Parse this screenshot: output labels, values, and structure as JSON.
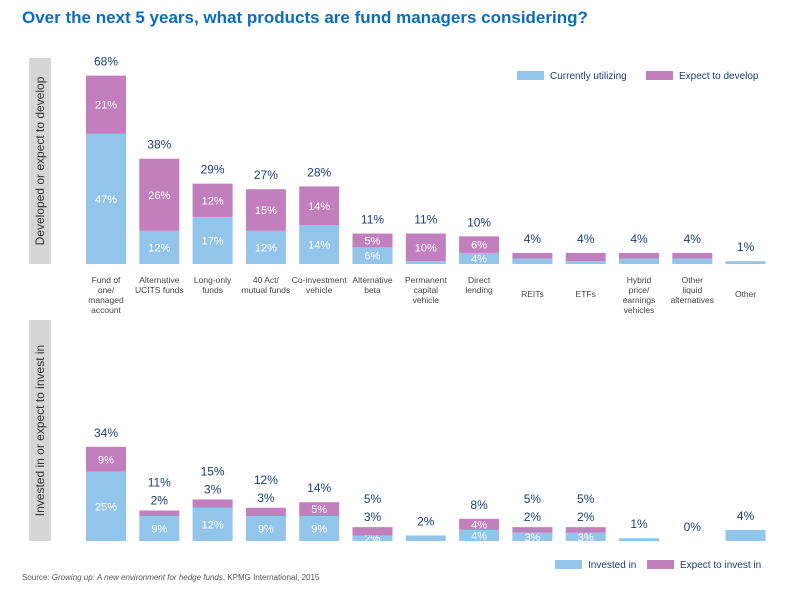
{
  "title": "Over the next 5 years, what products are fund managers considering?",
  "source": {
    "prefix": "Source: ",
    "work": "Growing up: A new environment for hedge funds",
    "suffix": ", KPMG International, 2015"
  },
  "colors": {
    "blue": "#92c5e9",
    "purple": "#c27fbe"
  },
  "chart_data": [
    {
      "type": "bar",
      "stacked": true,
      "ylabel": "Developed or expect to develop",
      "categories": [
        "Fund of one/ managed account",
        "Alternative UCITS funds",
        "Long-only funds",
        "40 Act/ mutual funds",
        "Co-investment vehicle",
        "Alternative beta",
        "Permanent capital vehicle",
        "Direct lending",
        "REITs",
        "ETFs",
        "Hybrid price/ earnings vehicles",
        "Other liquid alternatives",
        "Other"
      ],
      "category_lines": [
        [
          "Fund of",
          "one/",
          "managed",
          "account"
        ],
        [
          "Alternative",
          "UCITS funds"
        ],
        [
          "Long-only",
          "funds"
        ],
        [
          "40 Act/",
          "mutual funds"
        ],
        [
          "Co-investment",
          "vehicle"
        ],
        [
          "Alternative",
          "beta"
        ],
        [
          "Permanent",
          "capital",
          "vehicle"
        ],
        [
          "Direct",
          "lending"
        ],
        [
          "REITs"
        ],
        [
          "ETFs"
        ],
        [
          "Hybrid",
          "price/",
          "earnings",
          "vehicles"
        ],
        [
          "Other",
          "liquid",
          "alternatives"
        ],
        [
          "Other"
        ]
      ],
      "series": [
        {
          "name": "Currently utilizing",
          "values": [
            47,
            12,
            17,
            12,
            14,
            6,
            1,
            4,
            2,
            1,
            2,
            2,
            1
          ]
        },
        {
          "name": "Expect to develop",
          "values": [
            21,
            26,
            12,
            15,
            14,
            5,
            10,
            6,
            2,
            3,
            2,
            2,
            0
          ]
        }
      ],
      "series_labels": [
        [
          "47%",
          "12%",
          "17%",
          "12%",
          "14%",
          "6%",
          "",
          "4%",
          "",
          "",
          "",
          "",
          ""
        ],
        [
          "21%",
          "26%",
          "12%",
          "15%",
          "14%",
          "5%",
          "10%",
          "6%",
          "",
          "",
          "",
          "",
          ""
        ]
      ],
      "totals": [
        "68%",
        "38%",
        "29%",
        "27%",
        "28%",
        "11%",
        "11%",
        "10%",
        "4%",
        "4%",
        "4%",
        "4%",
        "1%"
      ],
      "legend": {
        "position": "top-right",
        "items": [
          "Currently utilizing",
          "Expect to develop"
        ]
      }
    },
    {
      "type": "bar",
      "stacked": true,
      "ylabel": "Invested in or expect to invest in",
      "series": [
        {
          "name": "Invested in",
          "values": [
            25,
            9,
            12,
            9,
            9,
            2,
            2,
            4,
            3,
            3,
            1,
            0,
            4
          ]
        },
        {
          "name": "Expect to invest in",
          "values": [
            9,
            2,
            3,
            3,
            5,
            3,
            0,
            4,
            2,
            2,
            0,
            0,
            0
          ]
        }
      ],
      "series_labels": [
        [
          "25%",
          "9%",
          "12%",
          "9%",
          "9%",
          "2%",
          "",
          "4%",
          "3%",
          "3%",
          "",
          "",
          ""
        ],
        [
          "9%",
          "",
          "",
          "",
          "5%",
          "",
          "",
          "4%",
          "",
          "",
          "",
          "",
          ""
        ]
      ],
      "above_labels": [
        "",
        "2%",
        "3%",
        "3%",
        "",
        "3%",
        "",
        "",
        "2%",
        "2%",
        "",
        "",
        ""
      ],
      "totals": [
        "34%",
        "11%",
        "15%",
        "12%",
        "14%",
        "5%",
        "2%",
        "8%",
        "5%",
        "5%",
        "1%",
        "0%",
        "4%"
      ],
      "legend": {
        "position": "bottom-right",
        "items": [
          "Invested in",
          "Expect to invest in"
        ]
      }
    }
  ]
}
